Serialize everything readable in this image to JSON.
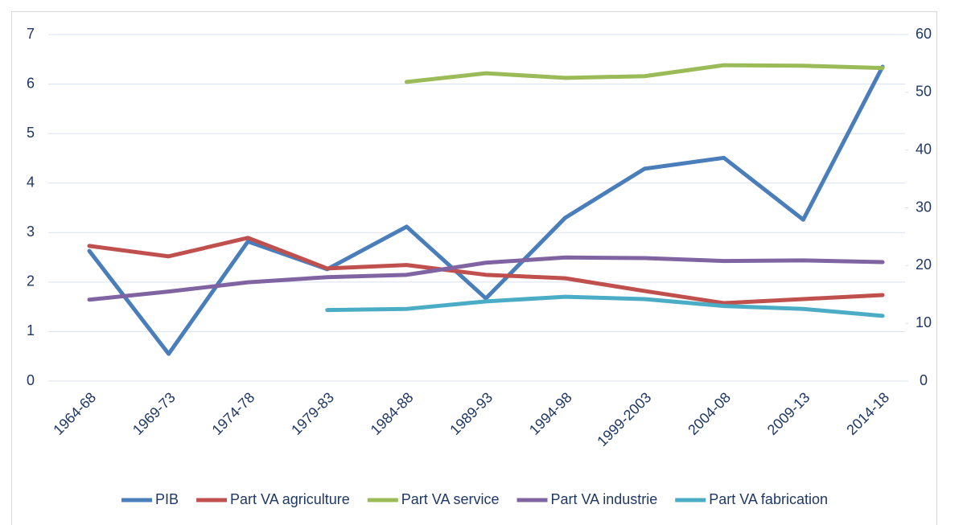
{
  "chart_data": {
    "type": "line",
    "categories": [
      "1964-68",
      "1969-73",
      "1974-78",
      "1979-83",
      "1984-88",
      "1989-93",
      "1994-98",
      "1999-2003",
      "2004-08",
      "2009-13",
      "2014-18"
    ],
    "series": [
      {
        "name": "PIB",
        "color": "#4a7ebb",
        "values": [
          2.63,
          0.55,
          2.82,
          2.26,
          3.12,
          1.67,
          3.3,
          4.29,
          4.51,
          3.26,
          6.35
        ]
      },
      {
        "name": "Part VA agriculture",
        "color": "#c0504d",
        "axis": "y2",
        "values": [
          23.4,
          21.6,
          24.8,
          19.5,
          20.1,
          18.4,
          17.8,
          15.6,
          13.5,
          14.2,
          14.9
        ]
      },
      {
        "name": "Part VA service",
        "color": "#9bbb59",
        "axis": "y2",
        "values": [
          null,
          null,
          null,
          null,
          51.8,
          53.3,
          52.5,
          52.8,
          54.7,
          54.6,
          54.2
        ]
      },
      {
        "name": "Part VA industrie",
        "color": "#8064a2",
        "axis": "y2",
        "values": [
          14.1,
          15.5,
          17.1,
          18.0,
          18.4,
          20.5,
          21.4,
          21.3,
          20.8,
          20.9,
          20.6
        ]
      },
      {
        "name": "Part VA fabrication",
        "color": "#4bacc6",
        "axis": "y2",
        "values": [
          null,
          null,
          null,
          12.3,
          12.5,
          13.8,
          14.6,
          14.2,
          13.0,
          12.5,
          11.3
        ]
      }
    ],
    "ylim": [
      0,
      7
    ],
    "yticks": [
      0,
      1,
      2,
      3,
      4,
      5,
      6,
      7
    ],
    "y2lim": [
      0,
      60
    ],
    "y2ticks": [
      0,
      10,
      20,
      30,
      40,
      50,
      60
    ],
    "grid": true,
    "legend": "bottom"
  }
}
